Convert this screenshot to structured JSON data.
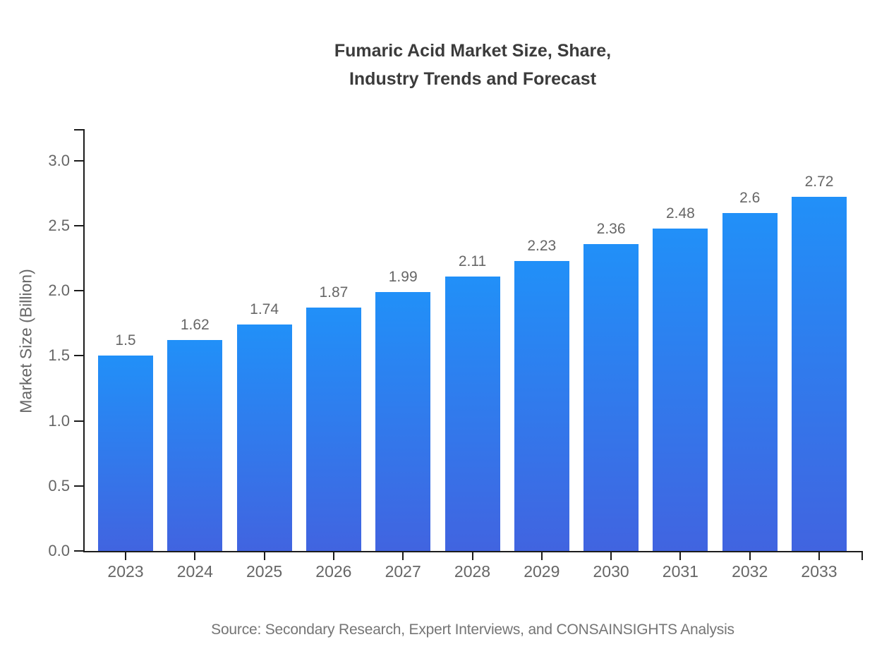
{
  "chart_data": {
    "type": "bar",
    "title": "Fumaric Acid Market Size, Share, Industry Trends and Forecast",
    "title_line1": "Fumaric Acid Market Size, Share,",
    "title_line2": "Industry Trends and Forecast",
    "categories": [
      "2023",
      "2024",
      "2025",
      "2026",
      "2027",
      "2028",
      "2029",
      "2030",
      "2031",
      "2032",
      "2033"
    ],
    "values": [
      1.5,
      1.62,
      1.74,
      1.87,
      1.99,
      2.11,
      2.23,
      2.36,
      2.48,
      2.6,
      2.72
    ],
    "value_labels": [
      "1.5",
      "1.62",
      "1.74",
      "1.87",
      "1.99",
      "2.11",
      "2.23",
      "2.36",
      "2.48",
      "2.6",
      "2.72"
    ],
    "xlabel": "",
    "ylabel": "Market Size (Billion)",
    "ylim": [
      0,
      3.25
    ],
    "yticks": [
      0.0,
      0.5,
      1.0,
      1.5,
      2.0,
      2.5,
      3.0
    ],
    "ytick_labels": [
      "0.0",
      "0.5",
      "1.0",
      "1.5",
      "2.0",
      "2.5",
      "3.0"
    ],
    "grid": false,
    "legend": "none",
    "source_note": "Source: Secondary Research, Expert Interviews, and CONSAINSIGHTS Analysis",
    "colors": {
      "bar_gradient_top": "#2190f8",
      "bar_gradient_bottom": "#4164e0",
      "axis": "#1c1c1c",
      "tick_label": "#666666",
      "value_label": "#666666",
      "title": "#3b3b3b",
      "source": "#757575",
      "background": "#ffffff"
    }
  }
}
